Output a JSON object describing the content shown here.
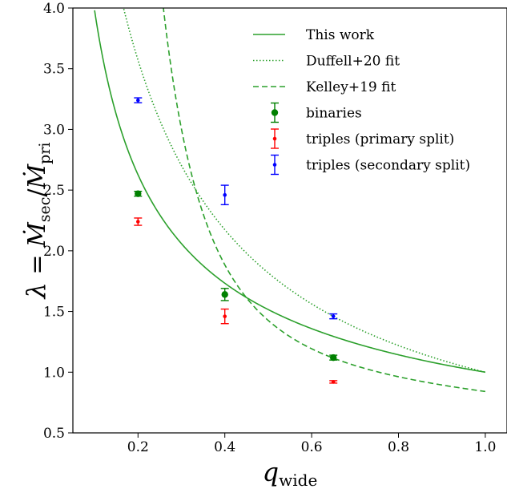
{
  "chart_data": {
    "type": "scatter",
    "xlabel": "q_wide",
    "ylabel": "λ = Ṁ_sec / Ṁ_pri",
    "xlim": [
      0.05,
      1.05
    ],
    "ylim": [
      0.5,
      4.0
    ],
    "xticks": [
      "0.2",
      "0.4",
      "0.6",
      "0.8",
      "1.0"
    ],
    "xtick_values": [
      0.2,
      0.4,
      0.6,
      0.8,
      1.0
    ],
    "yticks": [
      "0.5",
      "1.0",
      "1.5",
      "2.0",
      "2.5",
      "3.0",
      "3.5",
      "4.0"
    ],
    "ytick_values": [
      0.5,
      1.0,
      1.5,
      2.0,
      2.5,
      3.0,
      3.5,
      4.0
    ],
    "grid": false,
    "legend_position": "top-right",
    "curves": [
      {
        "name": "This work",
        "style": "solid",
        "color": "#2ca02c",
        "formula": "x^-0.6"
      },
      {
        "name": "Duffell+20 fit",
        "style": "dotted",
        "color": "#2ca02c",
        "formula": "1/(0.1 + 0.9x)"
      },
      {
        "name": "Kelley+19 fit",
        "style": "dashed",
        "color": "#2ca02c",
        "formula": "1 - 0.25x + 0.1/(1.1x^2.6)"
      }
    ],
    "series": [
      {
        "name": "binaries",
        "color": "#008000",
        "marker": "large-dot",
        "points": [
          {
            "x": 0.2,
            "y": 2.47,
            "err": 0.02
          },
          {
            "x": 0.4,
            "y": 1.64,
            "err": 0.05
          },
          {
            "x": 0.65,
            "y": 1.12,
            "err": 0.02
          }
        ]
      },
      {
        "name": "triples (primary split)",
        "color": "#ff0000",
        "marker": "small-dot",
        "points": [
          {
            "x": 0.2,
            "y": 2.24,
            "err": 0.03
          },
          {
            "x": 0.4,
            "y": 1.46,
            "err": 0.06
          },
          {
            "x": 0.65,
            "y": 0.92,
            "err": 0.01
          }
        ]
      },
      {
        "name": "triples (secondary split)",
        "color": "#0000ff",
        "marker": "small-dot",
        "points": [
          {
            "x": 0.2,
            "y": 3.24,
            "err": 0.02
          },
          {
            "x": 0.4,
            "y": 2.46,
            "err": 0.08
          },
          {
            "x": 0.65,
            "y": 1.46,
            "err": 0.02
          }
        ]
      }
    ]
  }
}
